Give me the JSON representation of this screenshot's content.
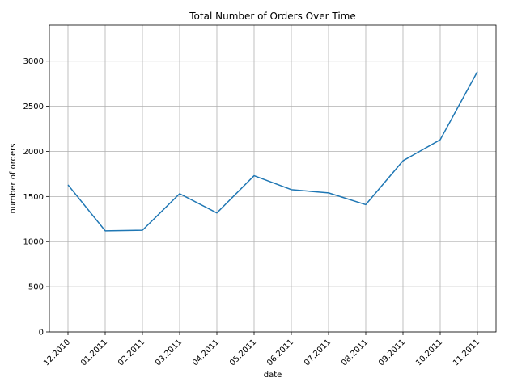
{
  "chart_data": {
    "type": "line",
    "title": "Total Number of Orders Over Time",
    "xlabel": "date",
    "ylabel": "number of orders",
    "categories": [
      "12.2010",
      "01.2011",
      "02.2011",
      "03.2011",
      "04.2011",
      "05.2011",
      "06.2011",
      "07.2011",
      "08.2011",
      "09.2011",
      "10.2011",
      "11.2011"
    ],
    "series": [
      {
        "values": [
          1629,
          1120,
          1126,
          1531,
          1318,
          1731,
          1576,
          1540,
          1410,
          1896,
          2129,
          2884
        ],
        "color": "#1f77b4"
      }
    ],
    "yticks": [
      0,
      500,
      1000,
      1500,
      2000,
      2500,
      3000
    ],
    "ylim": [
      0,
      3400
    ],
    "grid": true,
    "xtick_rotation": 45
  }
}
